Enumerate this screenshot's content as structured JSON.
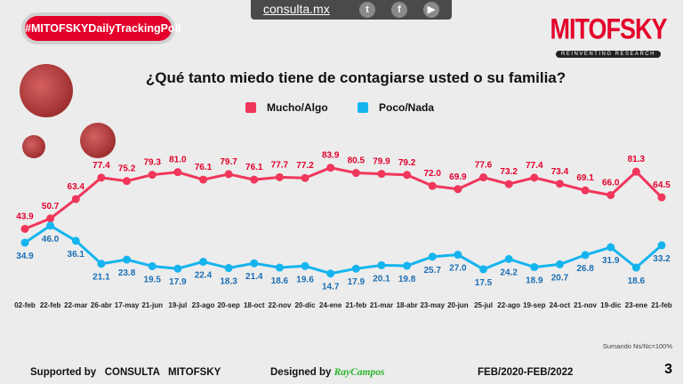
{
  "header": {
    "hashtag": "#MITOFSKYDailyTrackingPoll",
    "site": "consulta.mx",
    "social_icons": [
      "twitter-icon",
      "facebook-icon",
      "youtube-icon"
    ],
    "logo": "MITOFSKY",
    "logo_tagline": "REINVENTING RESEARCH"
  },
  "chart_data": {
    "type": "line",
    "title": "¿Qué tanto miedo tiene de contagiarse usted o su familia?",
    "categories": [
      "02-feb",
      "22-feb",
      "22-mar",
      "26-abr",
      "17-may",
      "21-jun",
      "19-jul",
      "23-ago",
      "20-sep",
      "18-oct",
      "22-nov",
      "20-dic",
      "24-ene",
      "21-feb",
      "21-mar",
      "18-abr",
      "23-may",
      "20-jun",
      "25-jul",
      "22-ago",
      "19-sep",
      "24-oct",
      "21-nov",
      "19-dic",
      "23-ene",
      "21-feb"
    ],
    "series": [
      {
        "name": "Mucho/Algo",
        "color": "#f0365a",
        "values": [
          43.9,
          50.7,
          63.4,
          77.4,
          75.2,
          79.3,
          81.0,
          76.1,
          79.7,
          76.1,
          77.7,
          77.2,
          83.9,
          80.5,
          79.9,
          79.2,
          72.0,
          69.9,
          77.6,
          73.2,
          77.4,
          73.4,
          69.1,
          66.0,
          81.3,
          64.5
        ]
      },
      {
        "name": "Poco/Nada",
        "color": "#14b4ee",
        "label_color": "#1a6fb5",
        "values": [
          34.9,
          46.0,
          36.1,
          21.1,
          23.8,
          19.5,
          17.9,
          22.4,
          18.3,
          21.4,
          18.6,
          19.6,
          14.7,
          17.9,
          20.1,
          19.8,
          25.7,
          27.0,
          17.5,
          24.2,
          18.9,
          20.7,
          26.8,
          31.9,
          18.6,
          33.2
        ]
      }
    ],
    "legend": "top-center",
    "grid": false,
    "ylim": [
      0,
      100
    ],
    "label_color_red": "#e4002b"
  },
  "footer": {
    "note": "Sumando Ns/Nc=100%",
    "supported": "Supported by   CONSULTA   MITOFSKY",
    "designed": "Designed by",
    "designer": "RayCampos",
    "period": "FEB/2020-FEB/2022",
    "page": "3"
  }
}
